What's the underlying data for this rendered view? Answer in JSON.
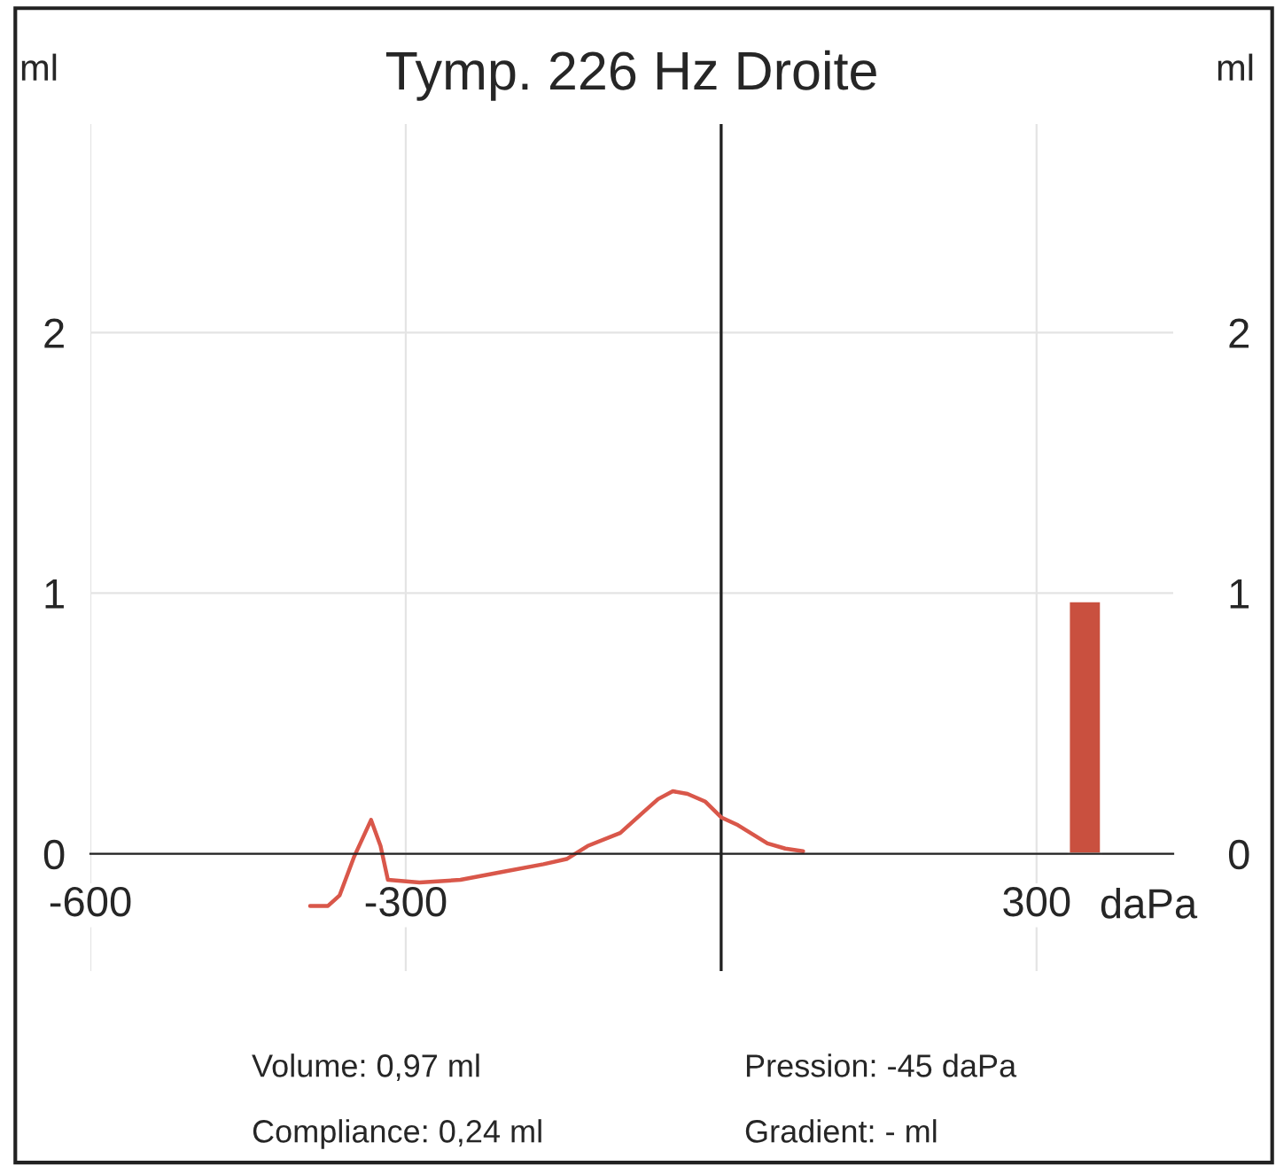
{
  "chart_data": {
    "type": "line",
    "title": "Tymp. 226 Hz Droite",
    "xlabel": "daPa",
    "ylabel": "ml",
    "y2label": "ml",
    "series": [
      {
        "type": "line",
        "color": "#d9574a",
        "x": [
          -391,
          -374,
          -363,
          -349,
          -333,
          -324,
          -317,
          -287,
          -248,
          -209,
          -169,
          -147,
          -127,
          -96,
          -74,
          -60,
          -46,
          -32,
          -15,
          0,
          16,
          44,
          61,
          78
        ],
        "values": [
          -0.2,
          -0.2,
          -0.16,
          -0.01,
          0.13,
          0.03,
          -0.1,
          -0.11,
          -0.1,
          -0.07,
          -0.04,
          -0.02,
          0.03,
          0.08,
          0.16,
          0.21,
          0.24,
          0.23,
          0.2,
          0.14,
          0.11,
          0.04,
          0.02,
          0.01
        ]
      },
      {
        "type": "bar",
        "color": "#c9503f",
        "x": [
          346
        ],
        "values": [
          0.97
        ]
      }
    ],
    "xlim": [
      -600,
      430
    ],
    "xticks": [
      -600,
      -300,
      300
    ],
    "ylim": [
      -0.45,
      2.8
    ],
    "yticks": [
      0,
      1,
      2
    ],
    "y2lim": [
      -0.45,
      2.8
    ],
    "y2ticks": [
      0,
      1,
      2
    ],
    "grid": true,
    "ref_lines": [
      {
        "axis": "x",
        "value": 0
      }
    ],
    "annotations": [
      "Volume: 0,97 ml",
      "Pression: -45 daPa",
      "Compliance: 0,24 ml",
      "Gradient: - ml"
    ]
  }
}
